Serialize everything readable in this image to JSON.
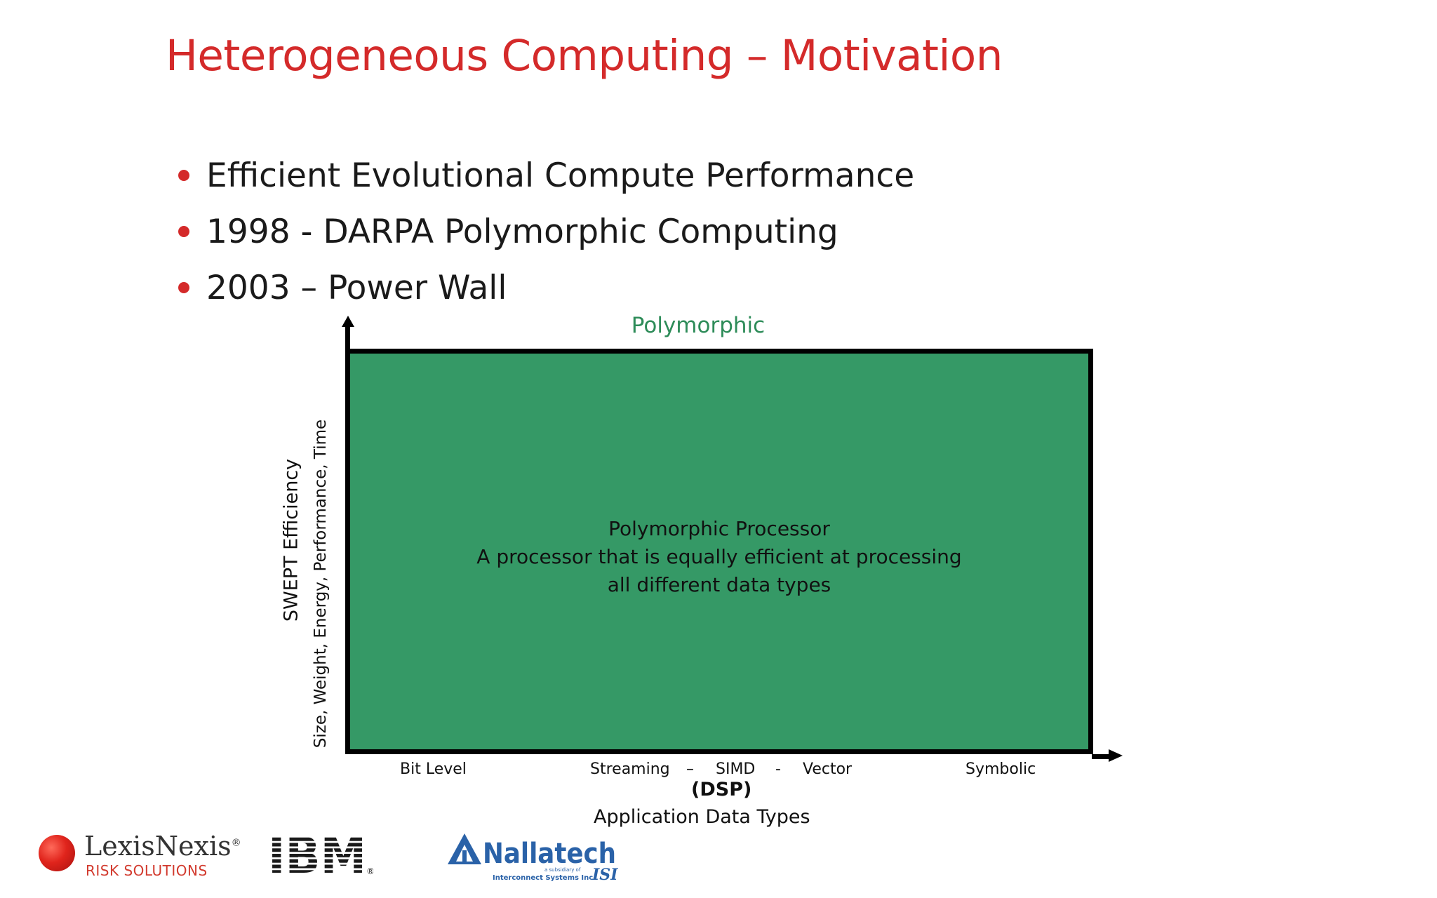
{
  "slide": {
    "title": "Heterogeneous Computing – Motivation",
    "bullets": [
      "Efficient Evolutional Compute Performance",
      "1998 - DARPA Polymorphic Computing",
      "2003 – Power Wall"
    ]
  },
  "diagram": {
    "top_label": "Polymorphic",
    "box_text": [
      "Polymorphic Processor",
      "A processor that is equally efficient at processing",
      "all different data types"
    ],
    "y_label": "SWEPT Efficiency",
    "y_sublabel": "Size, Weight, Energy, Performance, Time",
    "x_ticks": {
      "bit": "Bit Level",
      "streaming": "Streaming",
      "dash1": "–",
      "simd": "SIMD",
      "dash2": "-",
      "vector": "Vector",
      "symbolic": "Symbolic"
    },
    "x_sub": "(DSP)",
    "x_title": "Application Data Types",
    "box_color": "#359966"
  },
  "logos": {
    "lexis_name": "LexisNexis",
    "lexis_reg": "®",
    "lexis_sub": "RISK SOLUTIONS",
    "ibm": "IBM",
    "ibm_reg": "®",
    "nallatech": "Nallatech",
    "nalla_small": "a subsidiary of",
    "nalla_sub": "Interconnect Systems Inc.",
    "isi": "ISI"
  }
}
